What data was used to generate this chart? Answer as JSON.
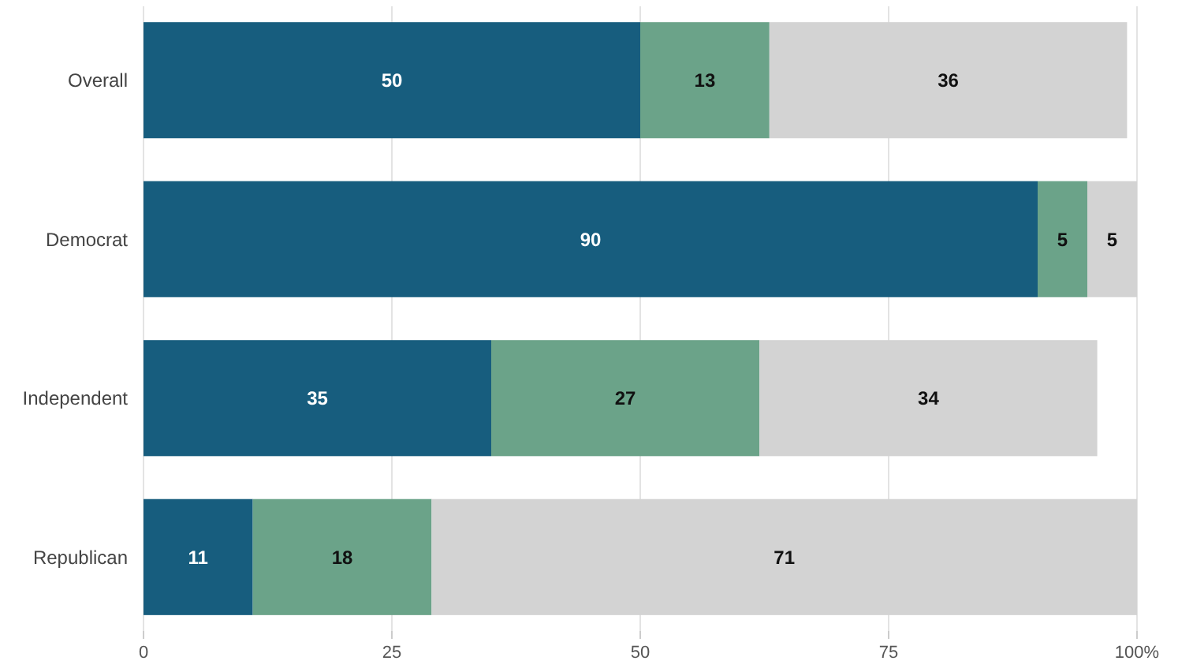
{
  "chart_data": {
    "type": "bar",
    "orientation": "horizontal",
    "stacked": true,
    "categories": [
      "Overall",
      "Democrat",
      "Independent",
      "Republican"
    ],
    "series": [
      {
        "color": "#175d7e",
        "values": [
          50,
          90,
          35,
          11
        ]
      },
      {
        "color": "#6ba389",
        "values": [
          13,
          5,
          27,
          18
        ]
      },
      {
        "color": "#d3d3d3",
        "values": [
          36,
          5,
          34,
          71
        ]
      }
    ],
    "xlim": [
      0,
      100
    ],
    "xticks": [
      0,
      25,
      50,
      75,
      {
        "value": 100,
        "label": "100%"
      }
    ],
    "grid": "x",
    "data_labels": true
  }
}
